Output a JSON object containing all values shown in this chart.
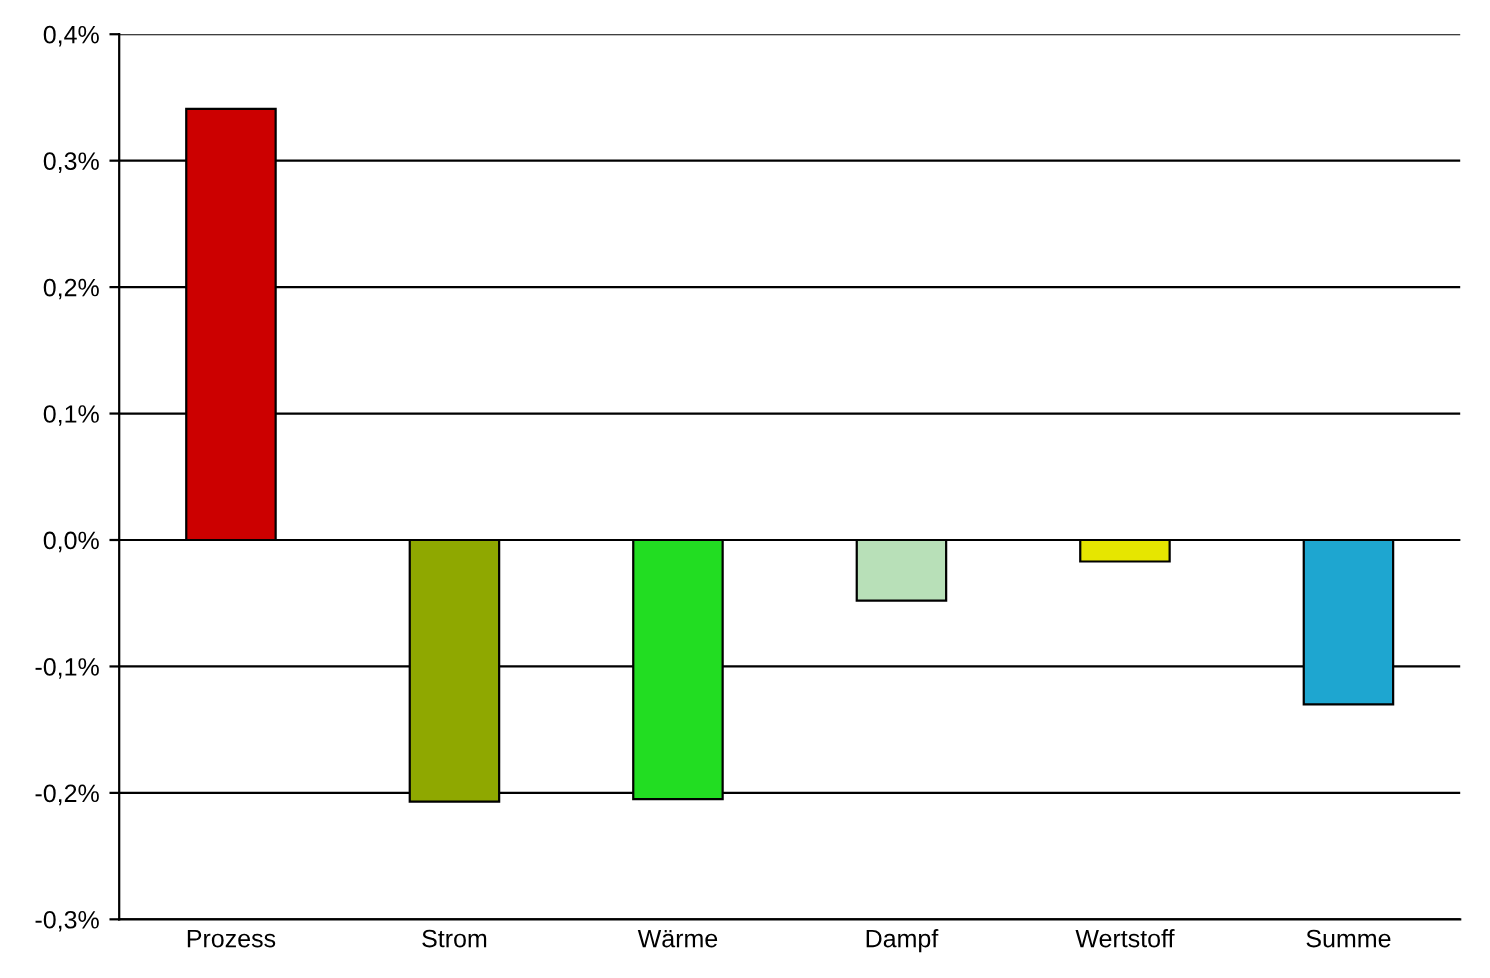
{
  "chart_data": {
    "type": "bar",
    "categories": [
      "Prozess",
      "Strom",
      "Wärme",
      "Dampf",
      "Wertstoff",
      "Summe"
    ],
    "values": [
      0.341,
      -0.207,
      -0.205,
      -0.048,
      -0.017,
      -0.13
    ],
    "colors": [
      "#cc0000",
      "#8fa800",
      "#22dd22",
      "#b8e0b8",
      "#e6e600",
      "#1ea6d0"
    ],
    "ylim": [
      -0.3,
      0.4
    ],
    "yticks": [
      {
        "value": -0.3,
        "label": "-0,3%"
      },
      {
        "value": -0.2,
        "label": "-0,2%"
      },
      {
        "value": -0.1,
        "label": "-0,1%"
      },
      {
        "value": 0.0,
        "label": "0,0%"
      },
      {
        "value": 0.1,
        "label": "0,1%"
      },
      {
        "value": 0.2,
        "label": "0,2%"
      },
      {
        "value": 0.3,
        "label": "0,3%"
      },
      {
        "value": 0.4,
        "label": "0,4%"
      }
    ],
    "grid": "y",
    "legend": false
  }
}
